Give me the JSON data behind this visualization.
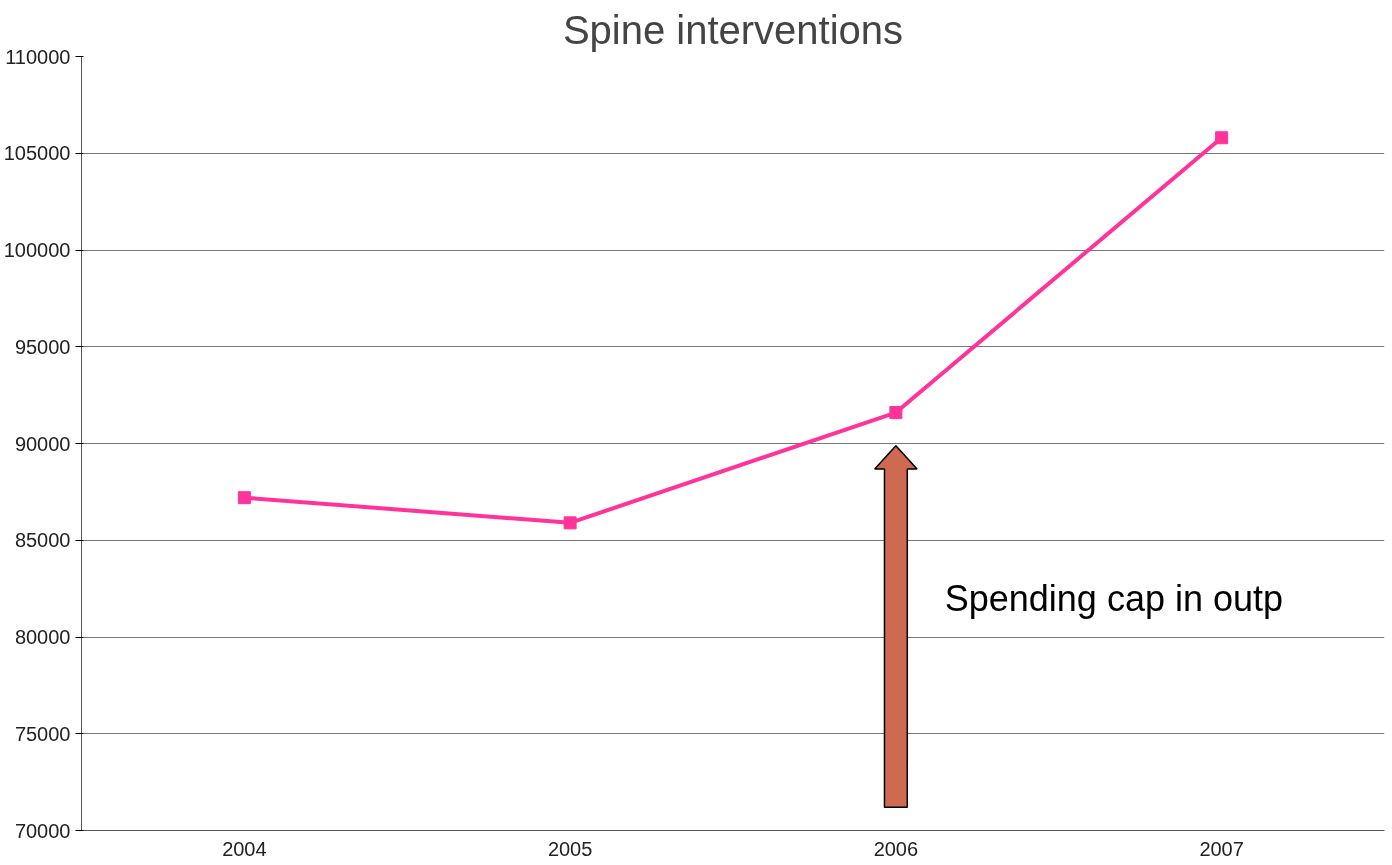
{
  "chart_data": {
    "type": "line",
    "title": "Spine interventions",
    "categories": [
      "2004",
      "2005",
      "2006",
      "2007"
    ],
    "series": [
      {
        "color": "#ff3399",
        "values": [
          87200,
          85900,
          91600,
          105800
        ]
      }
    ],
    "ylim": [
      70000,
      110000
    ],
    "yticks": [
      70000,
      75000,
      80000,
      85000,
      90000,
      95000,
      100000,
      105000,
      110000
    ],
    "grid": "y",
    "marker": "square",
    "line_style": "solid",
    "annotations": [
      "Spending cap in outp"
    ]
  }
}
